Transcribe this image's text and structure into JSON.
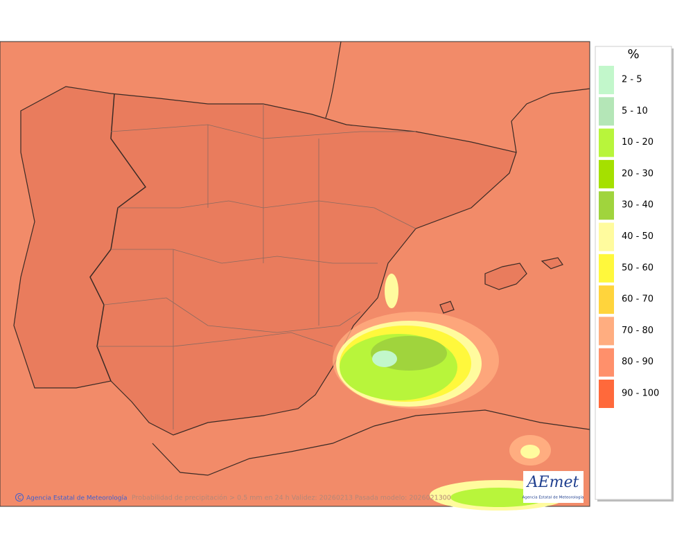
{
  "map": {
    "credit": "Agencia Estatal de Meteorología",
    "caption": "Probabilidad de precipitación > 0.5 mm en 24 h Validez: 20260213 Pasada modelo: 2026021300",
    "logo": {
      "name": "AEmet",
      "subtitle": "Agencia Estatal de Meteorología"
    }
  },
  "legend": {
    "unit": "%",
    "items": [
      {
        "label": "2 - 5",
        "color": "#c2f7cb"
      },
      {
        "label": "5 - 10",
        "color": "#b4e6b7"
      },
      {
        "label": "10 - 20",
        "color": "#b8f53b"
      },
      {
        "label": "20 - 30",
        "color": "#a5e000"
      },
      {
        "label": "30 - 40",
        "color": "#a0d43d"
      },
      {
        "label": "40 - 50",
        "color": "#fffb9e"
      },
      {
        "label": "50 - 60",
        "color": "#fff83c"
      },
      {
        "label": "60 - 70",
        "color": "#ffd43c"
      },
      {
        "label": "70 - 80",
        "color": "#ffad80"
      },
      {
        "label": "80 - 90",
        "color": "#ff906b"
      },
      {
        "label": "90 - 100",
        "color": "#ff693b"
      }
    ]
  }
}
